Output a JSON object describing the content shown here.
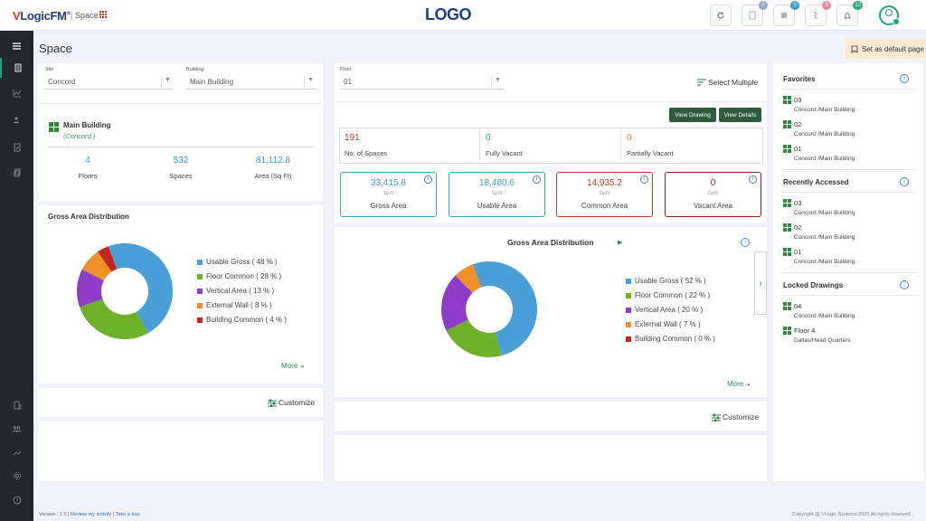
{
  "header": {
    "brand_v": "V",
    "brand_rest": "LogicFM",
    "brand_reg": "®",
    "separator": "|",
    "module": "Space",
    "logo": "LOGO",
    "badges": {
      "docs": "0",
      "list": "0",
      "person": "0",
      "bell": "12"
    }
  },
  "page": {
    "title": "Space",
    "default_button": "Set as default page"
  },
  "left_panel": {
    "site_label": "Site",
    "site_value": "Concord",
    "building_label": "Building",
    "building_value": "Main Building",
    "building_name": "Main Building",
    "building_site": "(Concord )",
    "stats": [
      {
        "value": "4",
        "label": "Floors"
      },
      {
        "value": "532",
        "label": "Spaces"
      },
      {
        "value": "81,112.8",
        "label": "Area (Sq Ft)"
      }
    ],
    "chart_title": "Gross Area Distribution",
    "legend": [
      "Usable Gross ( 48 % )",
      "Floor Common ( 28 % )",
      "Vertical Area ( 13 % )",
      "External Wall ( 8 % )",
      "Building Common ( 4 % )"
    ],
    "more": "More",
    "customize": "Customize"
  },
  "middle_panel": {
    "floor_label": "Floor",
    "floor_value": "01",
    "select_multiple": "Select Multiple",
    "view_drawing": "View Drawing",
    "view_details": "View Details",
    "counts": [
      {
        "value": "191",
        "label": "No. of Spaces",
        "color": "#c0392b"
      },
      {
        "value": "0",
        "label": "Fully Vacant",
        "color": "#27ae60"
      },
      {
        "value": "0",
        "label": "Partially Vacant",
        "color": "#e67e22"
      }
    ],
    "areas": [
      {
        "value": "33,415.8",
        "unit": "Sq Ft",
        "label": "Gross Area",
        "color": "#3aa6b9"
      },
      {
        "value": "18,480.6",
        "unit": "Sq Ft",
        "label": "Usable Area",
        "color": "#3aa6b9"
      },
      {
        "value": "14,935.2",
        "unit": "Sq Ft",
        "label": "Common Area",
        "color": "#c0392b"
      },
      {
        "value": "0",
        "unit": "Sq Ft",
        "label": "Vacant Area",
        "color": "#8b1e1e"
      }
    ],
    "chart_title": "Gross Area Distribution",
    "legend": [
      "Usable Gross ( 52 % )",
      "Floor Common ( 22 % )",
      "Vertical Area ( 20 % )",
      "External Wall ( 7 % )",
      "Building Common ( 0 % )"
    ],
    "more": "More",
    "customize": "Customize"
  },
  "right_panel": {
    "favorites_title": "Favorites",
    "favorites": [
      {
        "code": "03",
        "path": "Concord /Main Building"
      },
      {
        "code": "02",
        "path": "Concord /Main Building"
      },
      {
        "code": "01",
        "path": "Concord /Main Building"
      }
    ],
    "recent_title": "Recently Accessed",
    "recent": [
      {
        "code": "03",
        "path": "Concord /Main Building"
      },
      {
        "code": "02",
        "path": "Concord /Main Building"
      },
      {
        "code": "01",
        "path": "Concord /Main Building"
      }
    ],
    "locked_title": "Locked Drawings",
    "locked": [
      {
        "code": "04",
        "path": "Concord /Main Building"
      },
      {
        "code": "Floor 4",
        "path": "Dallas/Head Quarters"
      }
    ]
  },
  "footer": {
    "version": "Version : 1.0",
    "sep1": "|",
    "review": "Review my activity",
    "sep2": "|",
    "tour": "Take a tour",
    "copyright": "Copyright @ VLogic Systems 2025 All rights reserved ."
  },
  "colors": {
    "usable_gross": "#4a9fd8",
    "floor_common": "#6fb02a",
    "vertical_area": "#8e3dc9",
    "external_wall": "#f0902a",
    "building_common": "#c2281f"
  },
  "chart_data": [
    {
      "type": "pie",
      "title": "Gross Area Distribution",
      "categories": [
        "Usable Gross",
        "Floor Common",
        "Vertical Area",
        "External Wall",
        "Building Common"
      ],
      "values": [
        48,
        28,
        13,
        8,
        4
      ],
      "colors": [
        "#4a9fd8",
        "#6fb02a",
        "#8e3dc9",
        "#f0902a",
        "#c2281f"
      ],
      "legend": "right"
    },
    {
      "type": "pie",
      "title": "Gross Area Distribution",
      "categories": [
        "Usable Gross",
        "Floor Common",
        "Vertical Area",
        "External Wall",
        "Building Common"
      ],
      "values": [
        52,
        22,
        20,
        7,
        0
      ],
      "colors": [
        "#4a9fd8",
        "#6fb02a",
        "#8e3dc9",
        "#f0902a",
        "#c2281f"
      ],
      "legend": "right"
    }
  ]
}
